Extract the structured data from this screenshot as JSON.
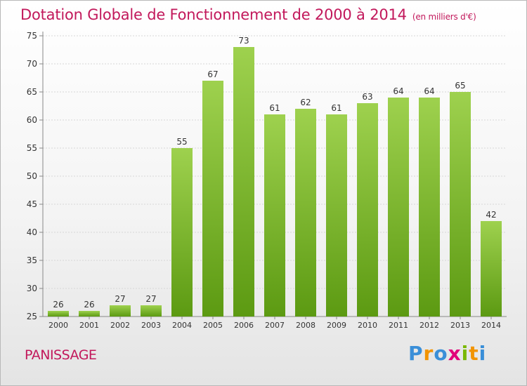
{
  "header": {
    "title": "Dotation Globale de Fonctionnement de 2000 à 2014",
    "unit": "(en milliers d'€)"
  },
  "footer": {
    "commune": "PANISSAGE",
    "logo": [
      "P",
      "r",
      "o",
      "x",
      "i",
      "t",
      "i"
    ]
  },
  "colors": {
    "title": "#c2185b",
    "bar_light": "#9ed14e",
    "bar_dark": "#5c9a12",
    "logo": [
      "#3a8fd8",
      "#f29400",
      "#3a8fd8",
      "#e2007a",
      "#7ab800",
      "#f29400",
      "#3a8fd8"
    ]
  },
  "chart_data": {
    "type": "bar",
    "categories": [
      "2000",
      "2001",
      "2002",
      "2003",
      "2004",
      "2005",
      "2006",
      "2007",
      "2008",
      "2009",
      "2010",
      "2011",
      "2012",
      "2013",
      "2014"
    ],
    "values": [
      26,
      26,
      27,
      27,
      55,
      67,
      73,
      61,
      62,
      61,
      63,
      64,
      64,
      65,
      42
    ],
    "data_labels": [
      "26",
      "26",
      "27",
      "27",
      "55",
      "67",
      "73",
      "61",
      "62",
      "61",
      "63",
      "64",
      "64",
      "65",
      "42"
    ],
    "yticks": [
      25,
      30,
      35,
      40,
      45,
      50,
      55,
      60,
      65,
      70,
      75
    ],
    "ylim": [
      25,
      75
    ],
    "grid": true,
    "xlabel": "",
    "ylabel": ""
  }
}
